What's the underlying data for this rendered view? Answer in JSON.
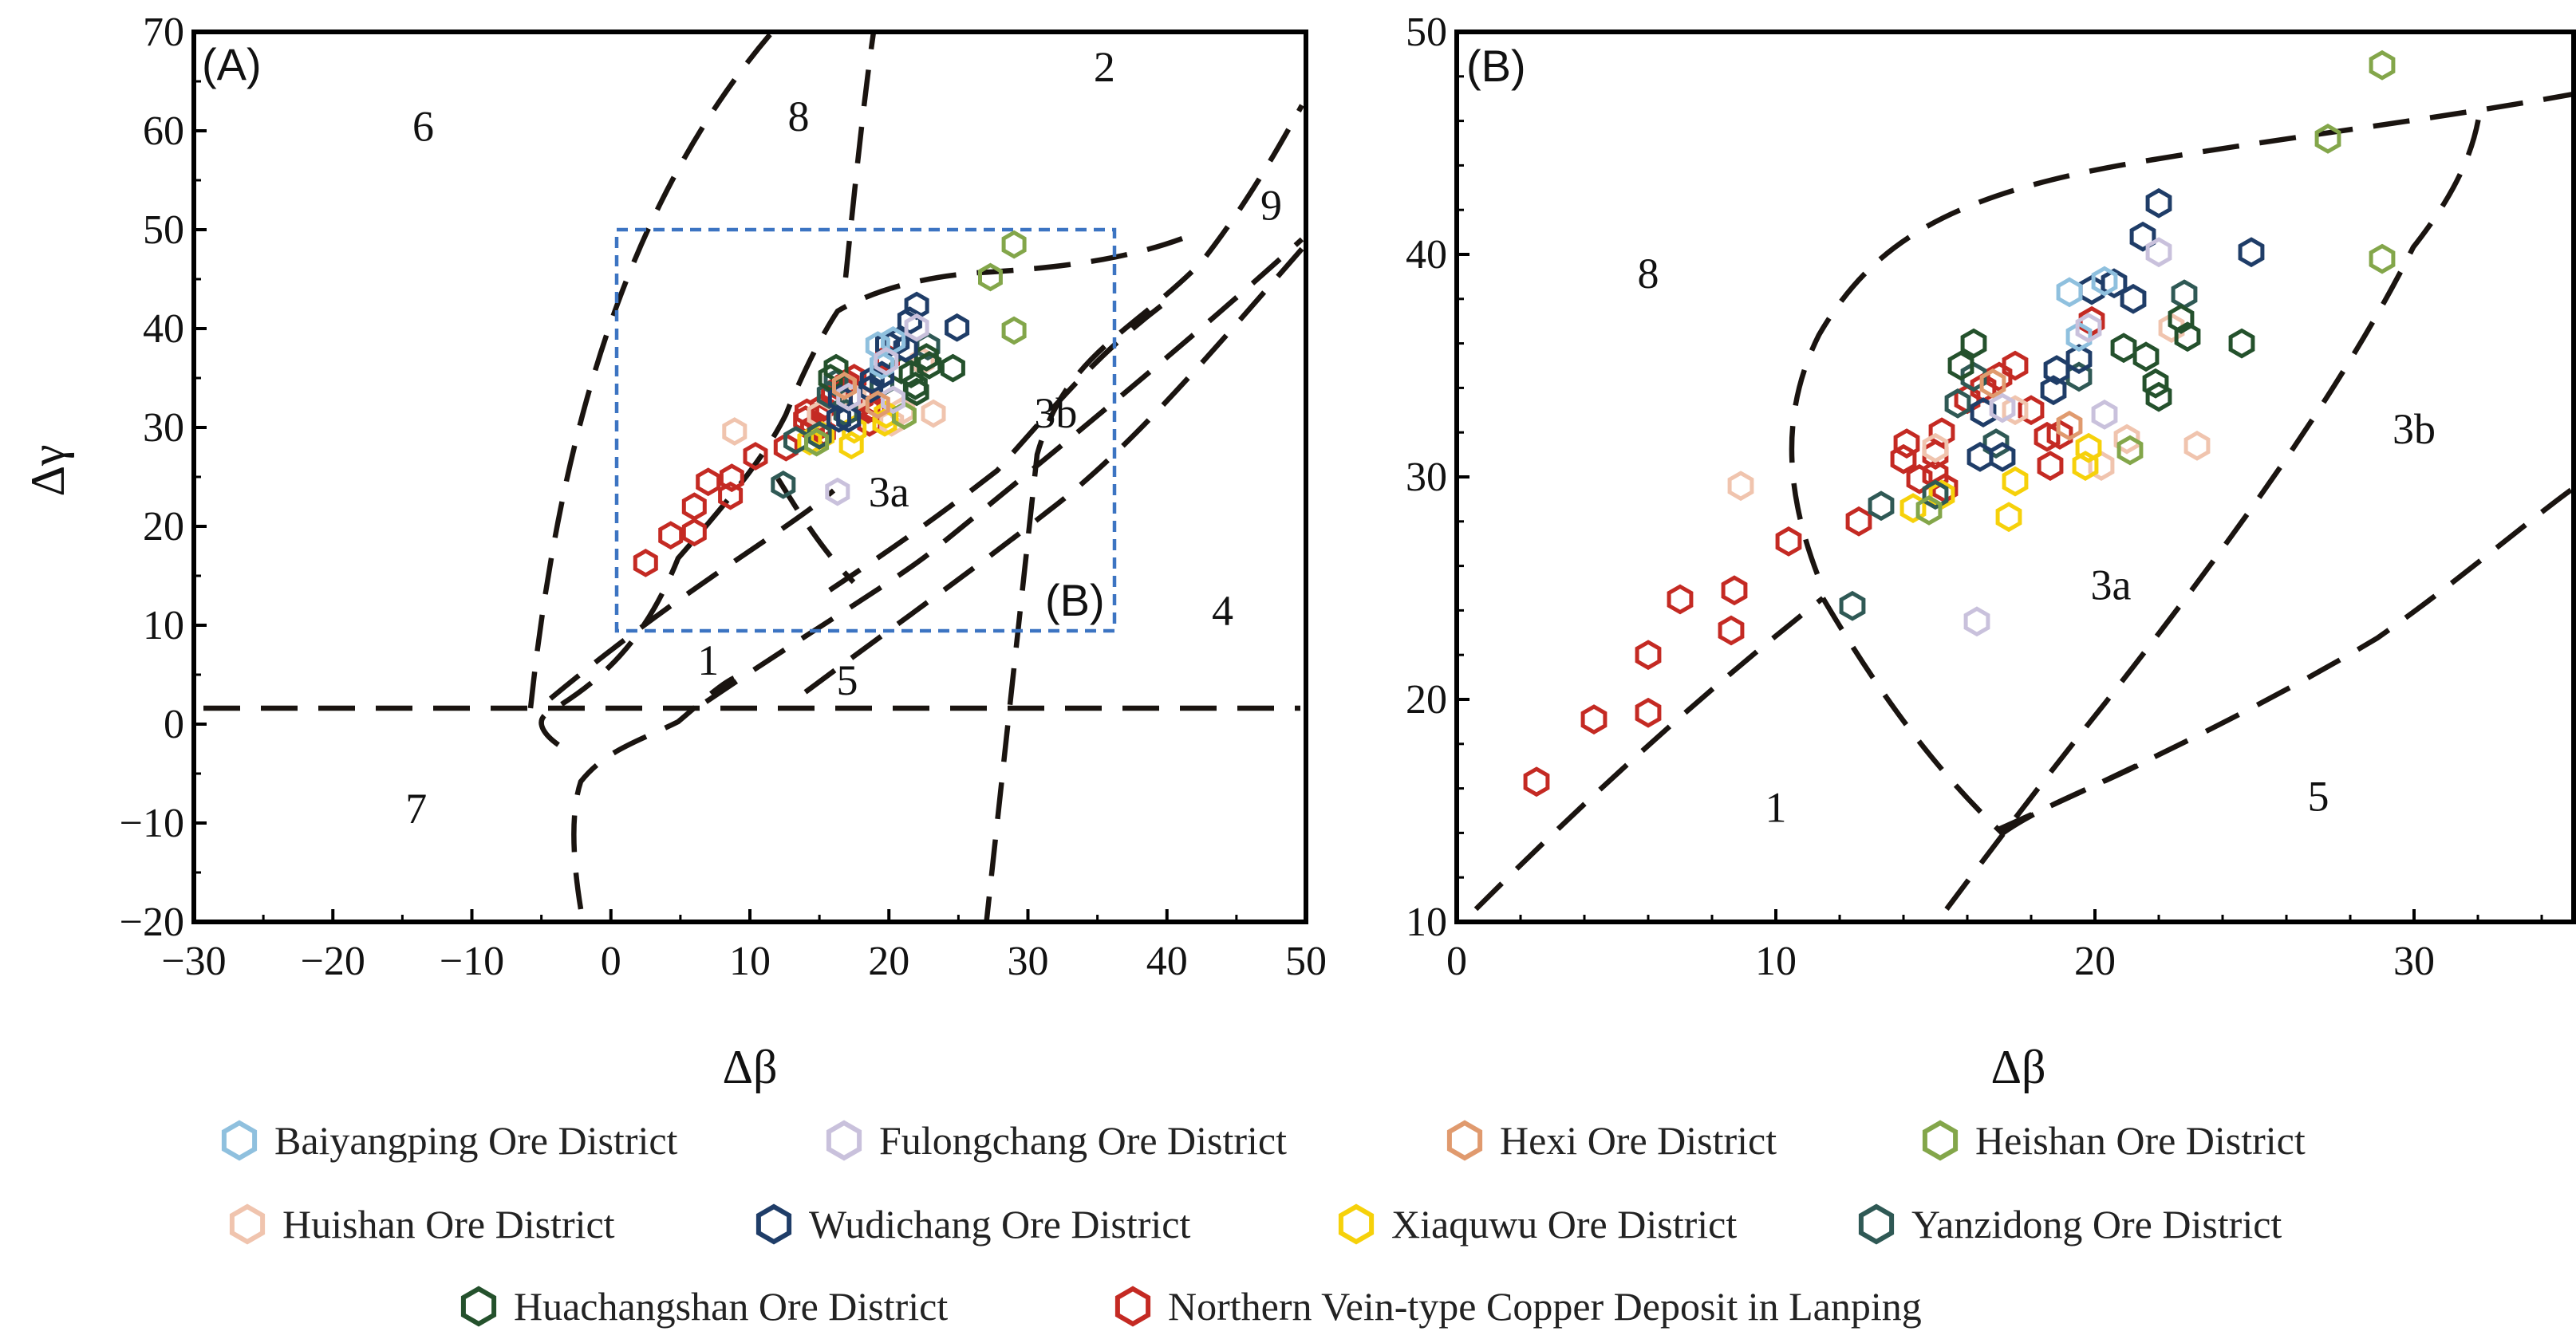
{
  "chart_data": [
    {
      "type": "scatter",
      "panel_label": "(A)",
      "xlabel": "Δβ",
      "ylabel": "Δγ",
      "xlim": [
        -30,
        50
      ],
      "ylim": [
        -20,
        70
      ],
      "xticks": [
        "-30",
        "-20",
        "-10",
        "0",
        "10",
        "20",
        "30",
        "40",
        "50"
      ],
      "yticks": [
        "-20",
        "-10",
        "0",
        "10",
        "20",
        "30",
        "40",
        "50",
        "60",
        "70"
      ],
      "region_labels": [
        {
          "text": "6",
          "x": -13.5,
          "y": 59
        },
        {
          "text": "8",
          "x": 13.5,
          "y": 60
        },
        {
          "text": "2",
          "x": 35.5,
          "y": 65
        },
        {
          "text": "9",
          "x": 47.5,
          "y": 51
        },
        {
          "text": "3b",
          "x": 32,
          "y": 30
        },
        {
          "text": "3a",
          "x": 20,
          "y": 22
        },
        {
          "text": "4",
          "x": 44,
          "y": 10
        },
        {
          "text": "5",
          "x": 17,
          "y": 3
        },
        {
          "text": "1",
          "x": 7,
          "y": 5
        },
        {
          "text": "7",
          "x": -14,
          "y": -10
        }
      ],
      "inset_box": {
        "label": "(B)",
        "xmin": 1,
        "xmax": 36,
        "ymin": 9.5,
        "ymax": 50
      },
      "series": [
        {
          "name": "Northern Vein-type Copper Deposit in Lanping",
          "color": "#c42a23",
          "points": [
            [
              2.5,
              16.3
            ],
            [
              4.3,
              19.1
            ],
            [
              6,
              19.4
            ],
            [
              6,
              22
            ],
            [
              7,
              24.5
            ],
            [
              8.6,
              23.1
            ],
            [
              8.7,
              24.9
            ],
            [
              10.4,
              27.1
            ],
            [
              12.6,
              28
            ],
            [
              14,
              30.8
            ],
            [
              14.1,
              31.5
            ],
            [
              14.5,
              29.9
            ],
            [
              15,
              30.1
            ],
            [
              15,
              31
            ],
            [
              15.2,
              32
            ],
            [
              15.3,
              29.5
            ],
            [
              16,
              33.5
            ],
            [
              16.5,
              34
            ],
            [
              17,
              34.5
            ],
            [
              17.5,
              35
            ],
            [
              18,
              33
            ],
            [
              18.5,
              31.8
            ],
            [
              18.6,
              30.5
            ],
            [
              18.9,
              31.9
            ],
            [
              19.9,
              37
            ]
          ]
        },
        {
          "name": "Huishan Ore District",
          "color": "#f0c4ae",
          "points": [
            [
              8.9,
              29.6
            ],
            [
              15,
              31.3
            ],
            [
              17.5,
              33
            ],
            [
              20.2,
              30.5
            ],
            [
              21,
              31.7
            ],
            [
              22.4,
              36.7
            ],
            [
              23.2,
              31.4
            ]
          ]
        },
        {
          "name": "Xiaquwu Ore District",
          "color": "#f6d10a",
          "points": [
            [
              14.3,
              28.6
            ],
            [
              15.2,
              29.2
            ],
            [
              17.3,
              28.2
            ],
            [
              17.5,
              29.8
            ],
            [
              19.7,
              30.5
            ],
            [
              19.8,
              31.3
            ]
          ]
        },
        {
          "name": "Yanzidong Ore District",
          "color": "#2f5955",
          "points": [
            [
              12.4,
              24.2
            ],
            [
              13.3,
              28.7
            ],
            [
              15,
              29.2
            ],
            [
              15.7,
              33.3
            ],
            [
              16.2,
              34.5
            ],
            [
              16.9,
              31.5
            ],
            [
              19.5,
              34.5
            ],
            [
              22.8,
              38.2
            ]
          ]
        },
        {
          "name": "Huachangshan Ore District",
          "color": "#24512c",
          "points": [
            [
              15.8,
              35
            ],
            [
              16.2,
              36
            ],
            [
              20.9,
              35.8
            ],
            [
              21.6,
              35.4
            ],
            [
              21.9,
              34.2
            ],
            [
              22,
              33.6
            ],
            [
              22.7,
              37.1
            ],
            [
              22.9,
              36.3
            ],
            [
              24.6,
              36
            ]
          ]
        },
        {
          "name": "Heishan Ore District",
          "color": "#83a64a",
          "points": [
            [
              14.8,
              28.5
            ],
            [
              21.1,
              31.2
            ],
            [
              27.3,
              45.2
            ],
            [
              29,
              39.8
            ],
            [
              29,
              48.5
            ]
          ]
        },
        {
          "name": "Wudichang Ore District",
          "color": "#1f3d68",
          "points": [
            [
              16.4,
              30.9
            ],
            [
              16.5,
              32.9
            ],
            [
              17.1,
              30.9
            ],
            [
              18.7,
              33.9
            ],
            [
              18.8,
              34.8
            ],
            [
              19.5,
              35.3
            ],
            [
              19.9,
              38.4
            ],
            [
              20.6,
              38.7
            ],
            [
              21.2,
              38
            ],
            [
              21.5,
              40.8
            ],
            [
              22,
              42.3
            ],
            [
              24.9,
              40.1
            ]
          ]
        },
        {
          "name": "Baiyangping Ore District",
          "color": "#8fc0de",
          "points": [
            [
              19.2,
              38.3
            ],
            [
              19.5,
              36.3
            ],
            [
              20.3,
              38.8
            ]
          ]
        },
        {
          "name": "Fulongchang Ore District",
          "color": "#c9c1dc",
          "points": [
            [
              16.3,
              23.5
            ],
            [
              19.8,
              36.7
            ],
            [
              20.3,
              32.8
            ],
            [
              22,
              40.1
            ],
            [
              17.1,
              33.1
            ]
          ]
        },
        {
          "name": "Hexi Ore District",
          "color": "#e09a6e",
          "points": [
            [
              16.8,
              34.2
            ],
            [
              19.2,
              32.3
            ]
          ]
        }
      ]
    },
    {
      "type": "scatter",
      "panel_label": "(B)",
      "xlabel": "Δβ",
      "ylabel": "",
      "xlim": [
        0,
        35
      ],
      "ylim": [
        10,
        50
      ],
      "xticks": [
        "0",
        "10",
        "20",
        "30"
      ],
      "yticks": [
        "10",
        "20",
        "30",
        "40",
        "50"
      ],
      "region_labels": [
        {
          "text": "8",
          "x": 6,
          "y": 38.5
        },
        {
          "text": "3b",
          "x": 30,
          "y": 31.5
        },
        {
          "text": "3a",
          "x": 20.5,
          "y": 24.5
        },
        {
          "text": "1",
          "x": 10,
          "y": 14.5
        },
        {
          "text": "5",
          "x": 27,
          "y": 15
        }
      ]
    }
  ],
  "legend": [
    {
      "label": "Baiyangping Ore District",
      "color": "#8fc0de"
    },
    {
      "label": "Fulongchang Ore District",
      "color": "#c9c1dc"
    },
    {
      "label": "Hexi Ore District",
      "color": "#e09a6e"
    },
    {
      "label": "Heishan Ore District",
      "color": "#83a64a"
    },
    {
      "label": "Huishan Ore District",
      "color": "#f0c4ae"
    },
    {
      "label": "Wudichang Ore District",
      "color": "#1f3d68"
    },
    {
      "label": "Xiaquwu Ore District",
      "color": "#f6d10a"
    },
    {
      "label": "Yanzidong Ore District",
      "color": "#2f5955"
    },
    {
      "label": "Huachangshan Ore District",
      "color": "#24512c"
    },
    {
      "label": "Northern Vein-type Copper Deposit in Lanping",
      "color": "#c42a23"
    }
  ]
}
